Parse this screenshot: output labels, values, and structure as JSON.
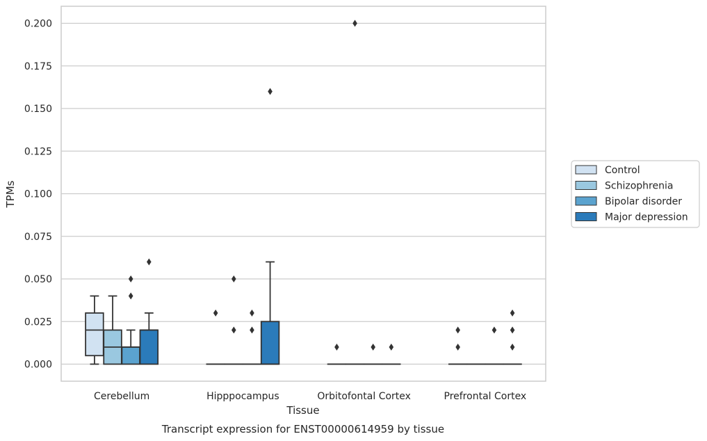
{
  "chart_data": {
    "type": "box",
    "title": "",
    "caption": "Transcript expression for ENST00000614959 by tissue",
    "xlabel": "Tissue",
    "ylabel": "TPMs",
    "ylim": [
      -0.01,
      0.21
    ],
    "yticks": [
      0.0,
      0.025,
      0.05,
      0.075,
      0.1,
      0.125,
      0.15,
      0.175,
      0.2
    ],
    "ytick_labels": [
      "0.000",
      "0.025",
      "0.050",
      "0.075",
      "0.100",
      "0.125",
      "0.150",
      "0.175",
      "0.200"
    ],
    "grid": "horizontal",
    "legend_position": "right",
    "categories": [
      "Cerebellum",
      "Hipppocampus",
      "Orbitofontal Cortex",
      "Prefrontal Cortex"
    ],
    "series": [
      {
        "name": "Control",
        "color": "#d1e2f2",
        "boxes": [
          {
            "q1": 0.005,
            "median": 0.02,
            "q3": 0.03,
            "whisker_low": 0.0,
            "whisker_high": 0.04,
            "outliers": []
          },
          {
            "q1": 0.0,
            "median": 0.0,
            "q3": 0.0,
            "whisker_low": 0.0,
            "whisker_high": 0.0,
            "outliers": [
              0.03
            ]
          },
          {
            "q1": 0.0,
            "median": 0.0,
            "q3": 0.0,
            "whisker_low": 0.0,
            "whisker_high": 0.0,
            "outliers": [
              0.01
            ]
          },
          {
            "q1": 0.0,
            "median": 0.0,
            "q3": 0.0,
            "whisker_low": 0.0,
            "whisker_high": 0.0,
            "outliers": [
              0.02,
              0.01
            ]
          }
        ]
      },
      {
        "name": "Schizophrenia",
        "color": "#9ac8e0",
        "boxes": [
          {
            "q1": 0.0,
            "median": 0.01,
            "q3": 0.02,
            "whisker_low": 0.0,
            "whisker_high": 0.04,
            "outliers": []
          },
          {
            "q1": 0.0,
            "median": 0.0,
            "q3": 0.0,
            "whisker_low": 0.0,
            "whisker_high": 0.0,
            "outliers": [
              0.05,
              0.02
            ]
          },
          {
            "q1": 0.0,
            "median": 0.0,
            "q3": 0.0,
            "whisker_low": 0.0,
            "whisker_high": 0.0,
            "outliers": [
              0.2
            ]
          },
          {
            "q1": 0.0,
            "median": 0.0,
            "q3": 0.0,
            "whisker_low": 0.0,
            "whisker_high": 0.0,
            "outliers": []
          }
        ]
      },
      {
        "name": "Bipolar disorder",
        "color": "#5ba3cf",
        "boxes": [
          {
            "q1": 0.0,
            "median": 0.01,
            "q3": 0.01,
            "whisker_low": 0.0,
            "whisker_high": 0.02,
            "outliers": [
              0.05,
              0.04
            ]
          },
          {
            "q1": 0.0,
            "median": 0.0,
            "q3": 0.0,
            "whisker_low": 0.0,
            "whisker_high": 0.0,
            "outliers": [
              0.03,
              0.02
            ]
          },
          {
            "q1": 0.0,
            "median": 0.0,
            "q3": 0.0,
            "whisker_low": 0.0,
            "whisker_high": 0.0,
            "outliers": [
              0.01
            ]
          },
          {
            "q1": 0.0,
            "median": 0.0,
            "q3": 0.0,
            "whisker_low": 0.0,
            "whisker_high": 0.0,
            "outliers": [
              0.02
            ]
          }
        ]
      },
      {
        "name": "Major depression",
        "color": "#2b7bba",
        "boxes": [
          {
            "q1": 0.0,
            "median": 0.02,
            "q3": 0.02,
            "whisker_low": 0.0,
            "whisker_high": 0.03,
            "outliers": [
              0.06
            ]
          },
          {
            "q1": 0.0,
            "median": 0.0,
            "q3": 0.025,
            "whisker_low": 0.0,
            "whisker_high": 0.06,
            "outliers": [
              0.16
            ]
          },
          {
            "q1": 0.0,
            "median": 0.0,
            "q3": 0.0,
            "whisker_low": 0.0,
            "whisker_high": 0.0,
            "outliers": [
              0.01
            ]
          },
          {
            "q1": 0.0,
            "median": 0.0,
            "q3": 0.0,
            "whisker_low": 0.0,
            "whisker_high": 0.0,
            "outliers": [
              0.03,
              0.02,
              0.01
            ]
          }
        ]
      }
    ]
  }
}
